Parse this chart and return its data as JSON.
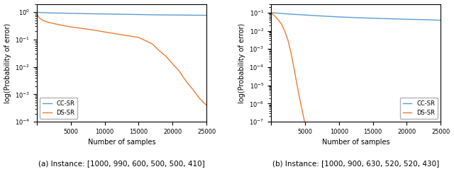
{
  "subplot_a": {
    "xlabel": "Number of samples",
    "ylabel": "log(Probability of error)",
    "xlim": [
      0,
      25000
    ],
    "xticks": [
      0,
      5000,
      10000,
      15000,
      20000,
      25000
    ],
    "ylim": [
      0.0001,
      2.0
    ],
    "cc_sr_x": [
      0,
      100,
      300,
      500,
      1000,
      2000,
      3000,
      5000,
      7500,
      10000,
      12500,
      15000,
      17500,
      20000,
      22500,
      25000
    ],
    "cc_sr_y": [
      1.0,
      0.99,
      0.98,
      0.97,
      0.96,
      0.94,
      0.93,
      0.91,
      0.88,
      0.86,
      0.84,
      0.82,
      0.8,
      0.79,
      0.78,
      0.77
    ],
    "ds_sr_x": [
      0,
      100,
      300,
      500,
      800,
      1000,
      1500,
      2000,
      3000,
      5000,
      7500,
      10000,
      12500,
      15000,
      17000,
      18000,
      19000,
      20000,
      21000,
      22000,
      23000,
      24000,
      25000
    ],
    "ds_sr_y": [
      1.0,
      0.8,
      0.65,
      0.58,
      0.52,
      0.49,
      0.44,
      0.41,
      0.36,
      0.29,
      0.24,
      0.19,
      0.15,
      0.12,
      0.07,
      0.04,
      0.025,
      0.013,
      0.007,
      0.003,
      0.0015,
      0.0007,
      0.0004
    ]
  },
  "subplot_b": {
    "xlabel": "Number of samples",
    "ylabel": "log(Probability of error)",
    "xlim": [
      0,
      25000
    ],
    "xticks": [
      0,
      5000,
      10000,
      15000,
      20000,
      25000
    ],
    "ylim": [
      1e-07,
      0.3
    ],
    "cc_sr_x": [
      0,
      500,
      1000,
      2000,
      3000,
      5000,
      7500,
      10000,
      12500,
      15000,
      17500,
      20000,
      22500,
      25000
    ],
    "cc_sr_y": [
      0.1,
      0.097,
      0.093,
      0.087,
      0.082,
      0.074,
      0.065,
      0.058,
      0.053,
      0.049,
      0.046,
      0.043,
      0.041,
      0.038
    ],
    "ds_sr_x": [
      0,
      100,
      300,
      500,
      800,
      1000,
      1500,
      2000,
      2500,
      3000,
      3500,
      4000,
      4500,
      5000,
      5500
    ],
    "ds_sr_y": [
      0.1,
      0.092,
      0.08,
      0.068,
      0.052,
      0.043,
      0.025,
      0.01,
      0.003,
      0.0005,
      5e-05,
      5e-06,
      6e-07,
      8e-08,
      1e-08
    ]
  },
  "cc_sr_color": "#5b9bd5",
  "ds_sr_color": "#ed7d31",
  "cc_sr_label": "CC-SR",
  "ds_sr_label": "DS-SR",
  "caption_a": "(a) Instance: [1000, 990, 600, 500, 500, 410]",
  "caption_b": "(b) Instance: [1000, 900, 630, 520, 520, 430]",
  "fig_width": 6.4,
  "fig_height": 2.46,
  "dpi": 100
}
